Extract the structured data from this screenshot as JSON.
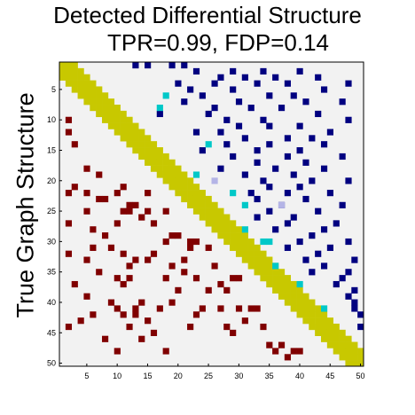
{
  "chart_data": {
    "type": "heatmap",
    "title": "Detected Differential Structure",
    "subtitle": "TPR=0.99, FDP=0.14",
    "ylabel": "True Graph Structure",
    "xlabel": "",
    "n": 50,
    "xticks": [
      5,
      10,
      15,
      20,
      25,
      30,
      35,
      40,
      45,
      50
    ],
    "yticks": [
      5,
      10,
      15,
      20,
      25,
      30,
      35,
      40,
      45,
      50
    ],
    "diagonal_band_width": 4,
    "colors": {
      "background": "#f2f2f2",
      "diagonal": "#c8c800",
      "true_edge": "#800000",
      "detected_true_positive": "#000080",
      "detected_false_positive": "#00c8c8",
      "detected_other": "#b4b4e6"
    },
    "lower_true_edges": [
      [
        10,
        2
      ],
      [
        12,
        2
      ],
      [
        22,
        2
      ],
      [
        27,
        2
      ],
      [
        32,
        2
      ],
      [
        44,
        2
      ],
      [
        14,
        3
      ],
      [
        21,
        3
      ],
      [
        37,
        3
      ],
      [
        43,
        4
      ],
      [
        18,
        5
      ],
      [
        22,
        5
      ],
      [
        25,
        5
      ],
      [
        33,
        5
      ],
      [
        39,
        5
      ],
      [
        28,
        6
      ],
      [
        31,
        6
      ],
      [
        42,
        6
      ],
      [
        19,
        7
      ],
      [
        23,
        7
      ],
      [
        35,
        7
      ],
      [
        23,
        8
      ],
      [
        29,
        8
      ],
      [
        46,
        8
      ],
      [
        31,
        9
      ],
      [
        40,
        9
      ],
      [
        22,
        10
      ],
      [
        27,
        10
      ],
      [
        36,
        10
      ],
      [
        41,
        10
      ],
      [
        48,
        10
      ],
      [
        21,
        11
      ],
      [
        25,
        11
      ],
      [
        32,
        11
      ],
      [
        37,
        11
      ],
      [
        42,
        11
      ],
      [
        24,
        12
      ],
      [
        25,
        12
      ],
      [
        34,
        12
      ],
      [
        36,
        12
      ],
      [
        44,
        12
      ],
      [
        24,
        13
      ],
      [
        33,
        13
      ],
      [
        41,
        13
      ],
      [
        42,
        13
      ],
      [
        26,
        14
      ],
      [
        40,
        14
      ],
      [
        46,
        14
      ],
      [
        22,
        15
      ],
      [
        25,
        15
      ],
      [
        33,
        15
      ],
      [
        43,
        15
      ],
      [
        27,
        16
      ],
      [
        32,
        16
      ],
      [
        45,
        16
      ],
      [
        41,
        17
      ],
      [
        25,
        18
      ],
      [
        30,
        18
      ],
      [
        36,
        18
      ],
      [
        48,
        18
      ],
      [
        29,
        19
      ],
      [
        34,
        19
      ],
      [
        40,
        19
      ],
      [
        29,
        20
      ],
      [
        38,
        20
      ],
      [
        33,
        21
      ],
      [
        35,
        21
      ],
      [
        30,
        22
      ],
      [
        31,
        22
      ],
      [
        44,
        22
      ],
      [
        30,
        23
      ],
      [
        36,
        23
      ],
      [
        42,
        23
      ],
      [
        41,
        24
      ],
      [
        31,
        25
      ],
      [
        38,
        25
      ],
      [
        34,
        26
      ],
      [
        37,
        27
      ],
      [
        41,
        27
      ],
      [
        38,
        28
      ],
      [
        44,
        28
      ],
      [
        36,
        29
      ],
      [
        45,
        29
      ],
      [
        36,
        30
      ],
      [
        41,
        30
      ],
      [
        43,
        31
      ],
      [
        41,
        32
      ],
      [
        41,
        33
      ],
      [
        44,
        34
      ],
      [
        47,
        35
      ],
      [
        48,
        36
      ],
      [
        47,
        37
      ],
      [
        49,
        38
      ],
      [
        48,
        39
      ],
      [
        48,
        40
      ]
    ],
    "upper_detected_edges": [
      [
        1,
        13
      ],
      [
        1,
        15
      ],
      [
        1,
        19
      ],
      [
        1,
        21
      ],
      [
        2,
        23
      ],
      [
        2,
        29
      ],
      [
        2,
        34
      ],
      [
        2,
        40
      ],
      [
        3,
        27
      ],
      [
        3,
        31
      ],
      [
        3,
        36
      ],
      [
        3,
        43
      ],
      [
        4,
        20
      ],
      [
        4,
        26
      ],
      [
        4,
        33
      ],
      [
        4,
        38
      ],
      [
        4,
        48
      ],
      [
        5,
        22
      ],
      [
        5,
        29
      ],
      [
        5,
        44
      ],
      [
        6,
        24
      ],
      [
        6,
        35
      ],
      [
        6,
        39
      ],
      [
        7,
        21
      ],
      [
        7,
        30
      ],
      [
        7,
        41
      ],
      [
        7,
        47
      ],
      [
        8,
        26
      ],
      [
        8,
        32
      ],
      [
        8,
        37
      ],
      [
        9,
        17
      ],
      [
        9,
        25
      ],
      [
        9,
        43
      ],
      [
        10,
        28
      ],
      [
        10,
        34
      ],
      [
        10,
        48
      ],
      [
        11,
        30
      ],
      [
        11,
        35
      ],
      [
        11,
        40
      ],
      [
        12,
        23
      ],
      [
        12,
        27
      ],
      [
        12,
        45
      ],
      [
        13,
        31
      ],
      [
        13,
        38
      ],
      [
        13,
        42
      ],
      [
        14,
        28
      ],
      [
        14,
        35
      ],
      [
        14,
        44
      ],
      [
        15,
        24
      ],
      [
        15,
        33
      ],
      [
        15,
        40
      ],
      [
        16,
        29
      ],
      [
        16,
        38
      ],
      [
        16,
        47
      ],
      [
        17,
        33
      ],
      [
        17,
        41
      ],
      [
        18,
        27
      ],
      [
        18,
        36
      ],
      [
        18,
        44
      ],
      [
        19,
        31
      ],
      [
        19,
        39
      ],
      [
        20,
        34
      ],
      [
        20,
        42
      ],
      [
        20,
        48
      ],
      [
        21,
        35
      ],
      [
        21,
        40
      ],
      [
        22,
        32
      ],
      [
        22,
        38
      ],
      [
        22,
        45
      ],
      [
        23,
        33
      ],
      [
        23,
        41
      ],
      [
        24,
        37
      ],
      [
        24,
        47
      ],
      [
        25,
        35
      ],
      [
        25,
        43
      ],
      [
        26,
        33
      ],
      [
        26,
        39
      ],
      [
        27,
        38
      ],
      [
        27,
        46
      ],
      [
        28,
        36
      ],
      [
        28,
        44
      ],
      [
        29,
        42
      ],
      [
        30,
        40
      ],
      [
        30,
        48
      ],
      [
        31,
        38
      ],
      [
        31,
        45
      ],
      [
        32,
        43
      ],
      [
        33,
        41
      ],
      [
        33,
        49
      ],
      [
        34,
        44
      ],
      [
        35,
        42
      ],
      [
        35,
        48
      ],
      [
        36,
        47
      ],
      [
        37,
        46
      ],
      [
        38,
        49
      ],
      [
        39,
        48
      ],
      [
        40,
        49
      ],
      [
        41,
        49
      ],
      [
        42,
        50
      ],
      [
        44,
        50
      ]
    ],
    "upper_false_positive_edges": [
      [
        6,
        18
      ],
      [
        8,
        17
      ],
      [
        14,
        25
      ],
      [
        19,
        23
      ],
      [
        22,
        29
      ],
      [
        24,
        31
      ],
      [
        28,
        31
      ],
      [
        30,
        34
      ],
      [
        30,
        35
      ],
      [
        34,
        36
      ],
      [
        37,
        40
      ],
      [
        41,
        44
      ]
    ],
    "upper_other_edges": [
      [
        20,
        26
      ],
      [
        24,
        37
      ]
    ]
  }
}
